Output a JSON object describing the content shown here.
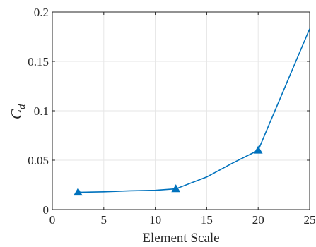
{
  "chart_data": {
    "type": "line",
    "title": "",
    "xlabel": "Element Scale",
    "ylabel": "C_d",
    "ylabel_parts": {
      "main": "C",
      "sub": "d"
    },
    "xlim": [
      0,
      25
    ],
    "ylim": [
      0,
      0.2
    ],
    "xticks": [
      0,
      5,
      10,
      15,
      20,
      25
    ],
    "yticks": [
      0,
      0.05,
      0.1,
      0.15,
      0.2
    ],
    "xtick_labels": [
      "0",
      "5",
      "10",
      "15",
      "20",
      "25"
    ],
    "ytick_labels": [
      "0",
      "0.05",
      "0.1",
      "0.15",
      "0.2"
    ],
    "grid": true,
    "series": [
      {
        "color": "#0072bd",
        "x": [
          2.5,
          5,
          7.5,
          10,
          12,
          15,
          17.5,
          20,
          25
        ],
        "y": [
          0.0175,
          0.018,
          0.019,
          0.0195,
          0.021,
          0.033,
          0.047,
          0.06,
          0.183
        ],
        "marker": "triangle",
        "marker_x": [
          2.5,
          12,
          20
        ],
        "marker_y": [
          0.0175,
          0.021,
          0.06
        ]
      }
    ]
  }
}
